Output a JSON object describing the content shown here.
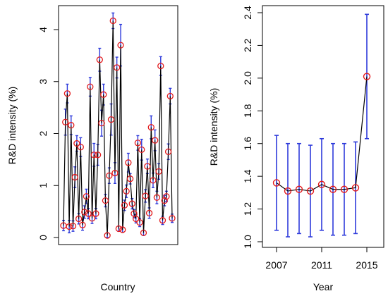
{
  "chart_data": [
    {
      "type": "line",
      "xlabel": "Country",
      "ylabel": "R&D intensity (%)",
      "ylim": [
        0,
        4.2
      ],
      "yticks": [
        0,
        1,
        2,
        3,
        4
      ],
      "x_ticks_shown": false,
      "colors": {
        "line": "#000000",
        "marker": "#e31a1c",
        "errorbar": "#2e3bdb"
      },
      "series": [
        {
          "values": [
            0.23,
            2.22,
            2.77,
            0.21,
            2.16,
            0.22,
            1.16,
            1.81,
            0.36,
            1.74,
            0.24,
            0.49,
            0.79,
            0.46,
            2.9,
            0.37,
            1.59,
            0.46,
            1.59,
            3.42,
            2.2,
            2.75,
            0.71,
            0.04,
            1.19,
            2.27,
            4.17,
            1.24,
            3.27,
            0.17,
            3.7,
            0.15,
            0.62,
            0.89,
            1.44,
            1.13,
            0.65,
            0.46,
            0.36,
            1.82,
            0.29,
            1.69,
            0.09,
            0.8,
            1.37,
            0.47,
            2.12,
            1.1,
            1.87,
            0.77,
            1.27,
            3.3,
            0.33,
            0.71,
            0.79,
            1.65,
            2.72,
            0.37
          ],
          "err": [
            0.1,
            0.25,
            0.18,
            0.12,
            0.18,
            0.1,
            0.2,
            0.15,
            0.1,
            0.18,
            0.1,
            0.12,
            0.14,
            0.1,
            0.18,
            0.1,
            0.22,
            0.1,
            0.2,
            0.22,
            0.25,
            0.2,
            0.12,
            0.05,
            0.15,
            0.3,
            0.15,
            0.2,
            0.2,
            0.05,
            0.4,
            0.05,
            0.1,
            0.12,
            0.18,
            0.1,
            0.1,
            0.08,
            0.08,
            0.14,
            0.08,
            0.2,
            0.05,
            0.12,
            0.14,
            0.1,
            0.22,
            0.14,
            0.2,
            0.12,
            0.15,
            0.18,
            0.08,
            0.1,
            0.1,
            0.15,
            0.15,
            0.08
          ]
        }
      ]
    },
    {
      "type": "line",
      "xlabel": "Year",
      "ylabel": "R&D intensity (%)",
      "ylim": [
        1.0,
        2.4
      ],
      "yticks": [
        1.0,
        1.2,
        1.4,
        1.6,
        1.8,
        2.0,
        2.2,
        2.4
      ],
      "xlim": [
        2006.3,
        2015.7
      ],
      "xticks": [
        2007,
        2011,
        2015
      ],
      "colors": {
        "line": "#000000",
        "marker": "#e31a1c",
        "errorbar": "#2e3bdb"
      },
      "series": [
        {
          "x": [
            2007,
            2008,
            2009,
            2010,
            2011,
            2012,
            2013,
            2014,
            2015
          ],
          "values": [
            1.36,
            1.31,
            1.32,
            1.31,
            1.35,
            1.32,
            1.32,
            1.33,
            2.01
          ],
          "lower": [
            1.07,
            1.03,
            1.05,
            1.03,
            1.07,
            1.04,
            1.04,
            1.05,
            1.63
          ],
          "upper": [
            1.65,
            1.6,
            1.6,
            1.59,
            1.63,
            1.6,
            1.6,
            1.61,
            2.39
          ]
        }
      ]
    }
  ]
}
